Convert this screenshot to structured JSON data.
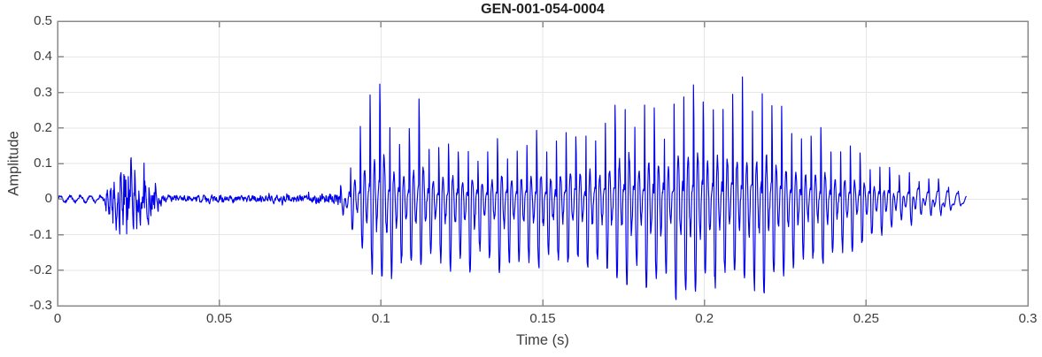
{
  "chart_data": {
    "type": "line",
    "title": "GEN-001-054-0004",
    "xlabel": "Time (s)",
    "ylabel": "Amplitude",
    "xlim": [
      0,
      0.3
    ],
    "ylim": [
      -0.3,
      0.5
    ],
    "xticks": [
      0,
      0.05,
      0.1,
      0.15,
      0.2,
      0.25,
      0.3
    ],
    "xtick_labels": [
      "0",
      "0.05",
      "0.1",
      "0.15",
      "0.2",
      "0.25",
      "0.3"
    ],
    "yticks": [
      -0.3,
      -0.2,
      -0.1,
      0,
      0.1,
      0.2,
      0.3,
      0.4,
      0.5
    ],
    "ytick_labels": [
      "-0.3",
      "-0.2",
      "-0.1",
      "0",
      "0.1",
      "0.2",
      "0.3",
      "0.4",
      "0.5"
    ],
    "grid": true,
    "legend": null,
    "style": {
      "line_color": "#0000EE",
      "frame_color": "#8a8a8a",
      "tick_color": "#8a8a8a",
      "grid_color": "#e6e6e6",
      "label_color": "#3d3d3d",
      "title_color": "#212121",
      "background": "#ffffff"
    },
    "waveform": {
      "description": "speech audio waveform: tiny ripple, small plosive burst ~0.015-0.033s, quiet noise floor, strong voiced segment 0.0875-0.281s with max amplitude 0.405 at t=0.207s and minimum -0.27 near t=0.103s",
      "f0_hz": 330,
      "t_start": 0,
      "t_end": 0.281,
      "segments": [
        {
          "type": "ripple",
          "t0": 0,
          "t1": 0.0145,
          "amp": 0.0085,
          "freq_hz": 320
        },
        {
          "type": "noise_burst",
          "t0": 0.0145,
          "t1": 0.033,
          "peak_t": 0.022,
          "hi": 0.13,
          "lo": -0.12
        },
        {
          "type": "low_noise",
          "t0": 0.033,
          "t1": 0.0875,
          "amp": 0.012
        },
        {
          "type": "voiced",
          "t0": 0.0875,
          "t1": 0.281
        }
      ],
      "burst_env": [
        [
          0.0145,
          0.02
        ],
        [
          0.016,
          0.055
        ],
        [
          0.018,
          0.08
        ],
        [
          0.0205,
          0.105
        ],
        [
          0.022,
          0.13
        ],
        [
          0.0235,
          0.1
        ],
        [
          0.026,
          0.09
        ],
        [
          0.0285,
          0.06
        ],
        [
          0.031,
          0.035
        ],
        [
          0.033,
          0.015
        ]
      ],
      "envelope": [
        [
          0.0875,
          -0.03,
          0.04
        ],
        [
          0.09,
          -0.1,
          0.1
        ],
        [
          0.093,
          -0.14,
          0.24
        ],
        [
          0.097,
          -0.19,
          0.28
        ],
        [
          0.1,
          -0.22,
          0.31
        ],
        [
          0.1025,
          -0.27,
          0.26
        ],
        [
          0.105,
          -0.24,
          0.22
        ],
        [
          0.108,
          -0.2,
          0.21
        ],
        [
          0.1115,
          -0.17,
          0.25
        ],
        [
          0.116,
          -0.17,
          0.16
        ],
        [
          0.122,
          -0.18,
          0.15
        ],
        [
          0.128,
          -0.19,
          0.15
        ],
        [
          0.135,
          -0.19,
          0.16
        ],
        [
          0.142,
          -0.2,
          0.17
        ],
        [
          0.149,
          -0.2,
          0.2
        ],
        [
          0.156,
          -0.2,
          0.22
        ],
        [
          0.163,
          -0.21,
          0.23
        ],
        [
          0.169,
          -0.22,
          0.25
        ],
        [
          0.175,
          -0.22,
          0.27
        ],
        [
          0.181,
          -0.24,
          0.28
        ],
        [
          0.187,
          -0.26,
          0.28
        ],
        [
          0.193,
          -0.26,
          0.3
        ],
        [
          0.199,
          -0.25,
          0.31
        ],
        [
          0.205,
          -0.25,
          0.32
        ],
        [
          0.211,
          -0.25,
          0.33
        ],
        [
          0.217,
          -0.26,
          0.31
        ],
        [
          0.223,
          -0.24,
          0.28
        ],
        [
          0.229,
          -0.21,
          0.24
        ],
        [
          0.235,
          -0.18,
          0.2
        ],
        [
          0.241,
          -0.16,
          0.16
        ],
        [
          0.247,
          -0.13,
          0.13
        ],
        [
          0.253,
          -0.11,
          0.11
        ],
        [
          0.259,
          -0.09,
          0.09
        ],
        [
          0.265,
          -0.075,
          0.08
        ],
        [
          0.27,
          -0.06,
          0.07
        ],
        [
          0.2755,
          -0.05,
          0.05
        ],
        [
          0.281,
          -0.02,
          0.02
        ]
      ],
      "spikes": [
        [
          0.1005,
          0.335
        ],
        [
          0.1115,
          0.26
        ],
        [
          0.177,
          0.335
        ],
        [
          0.1955,
          0.33
        ],
        [
          0.2075,
          0.405
        ],
        [
          0.211,
          0.35
        ]
      ]
    }
  }
}
